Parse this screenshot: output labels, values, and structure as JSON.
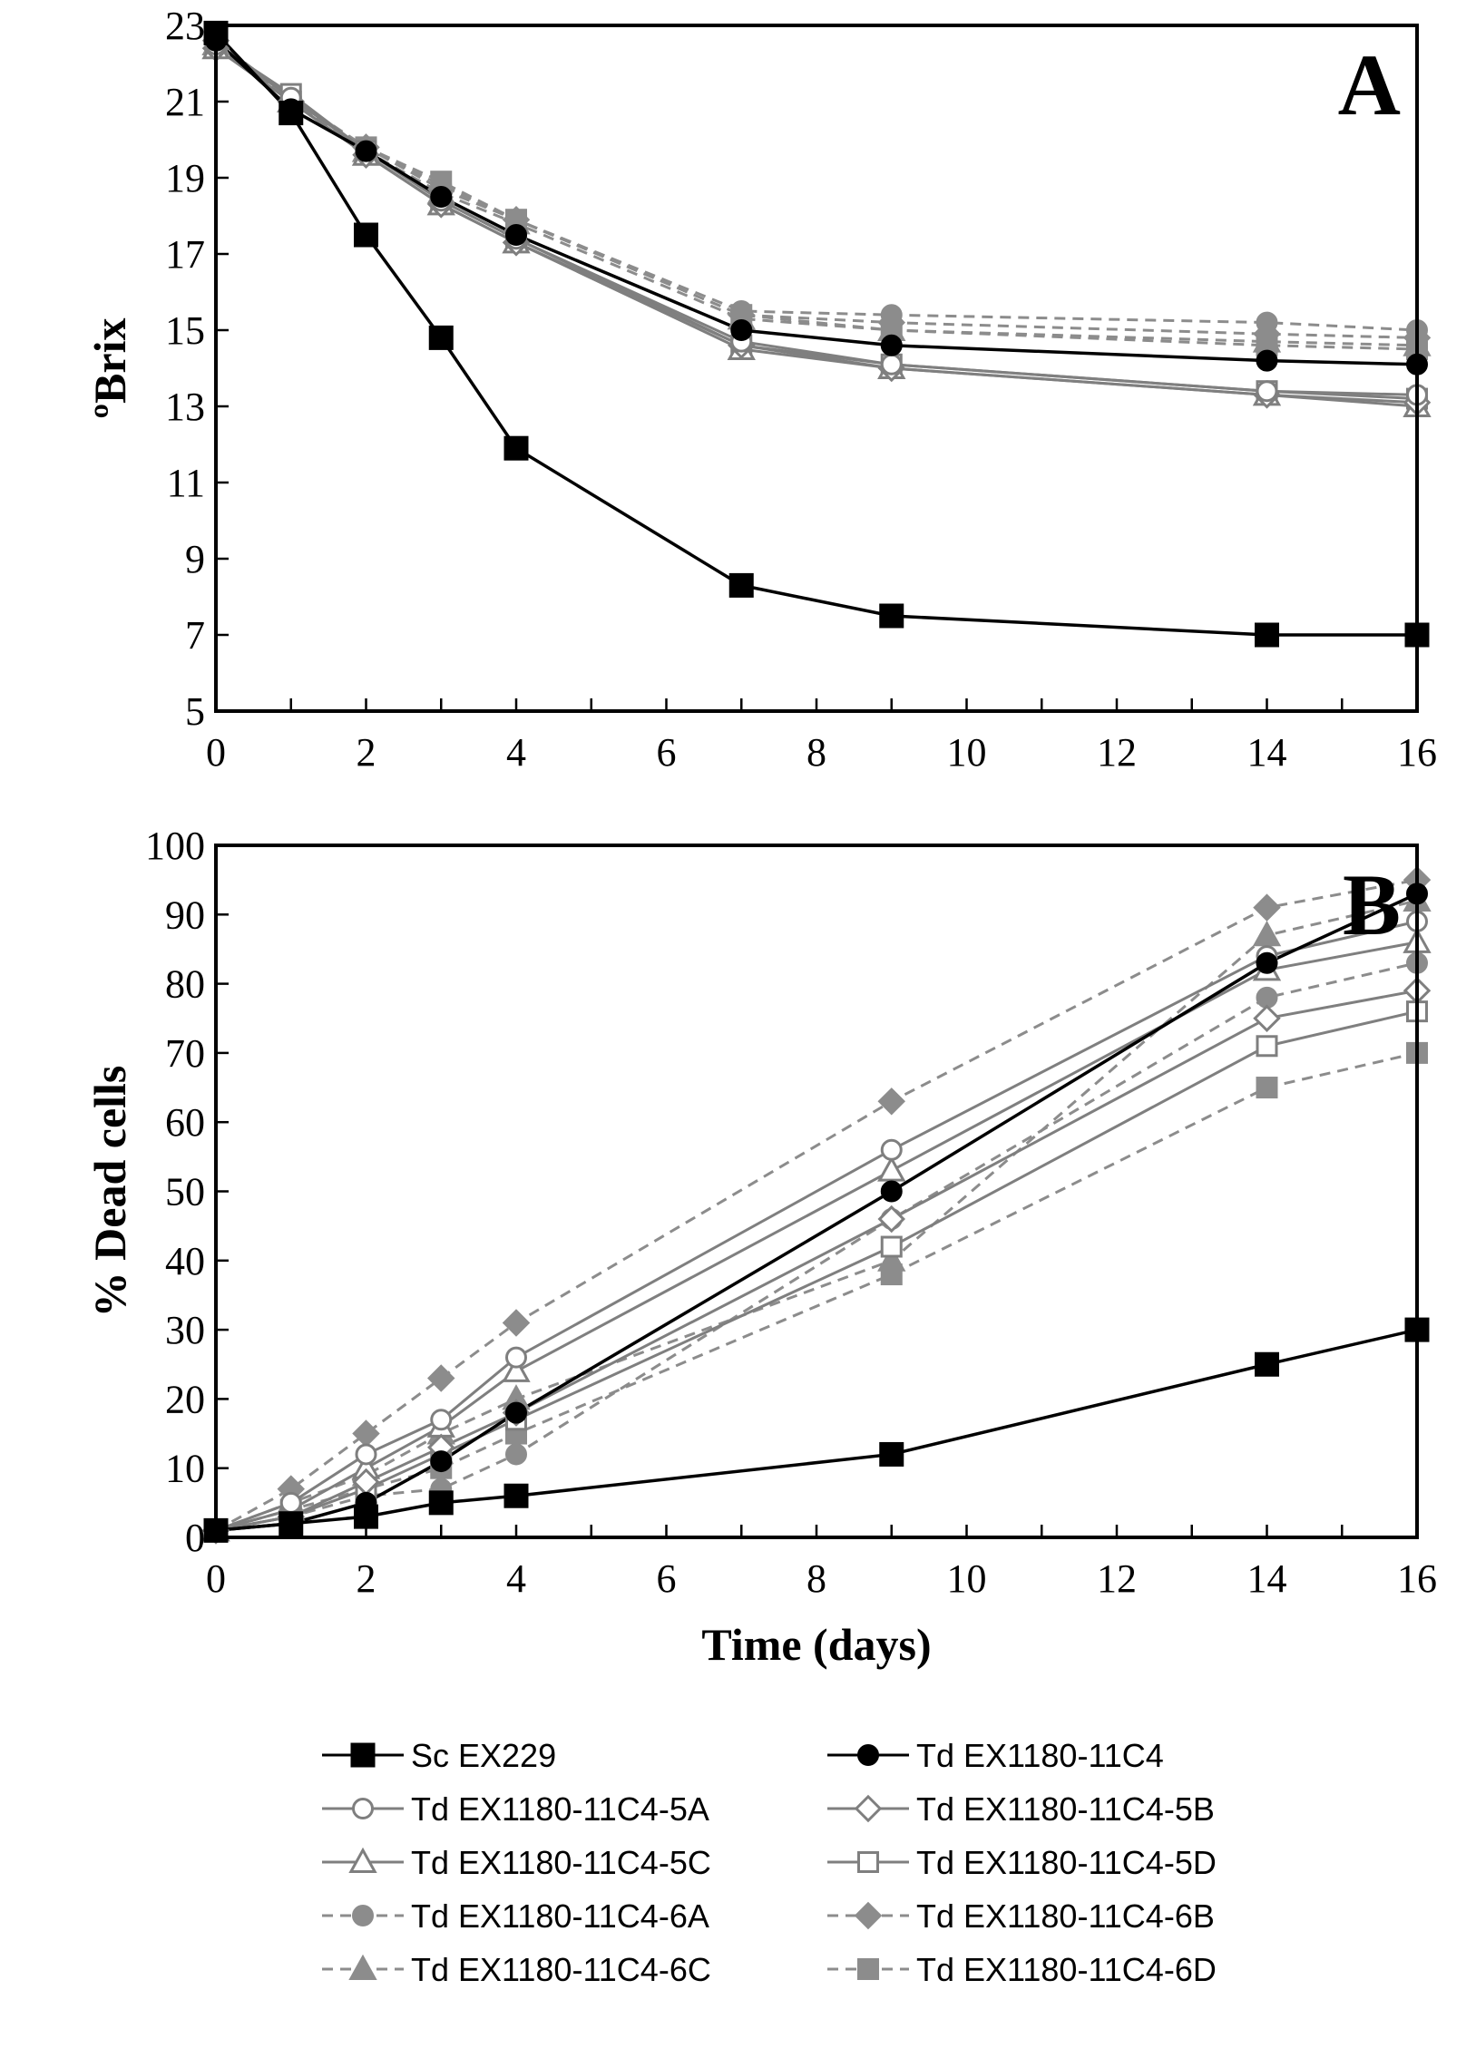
{
  "colors": {
    "black": "#000000",
    "gray": "#7f7f7f",
    "gray_dashed": "#8c8c8c"
  },
  "legend_columns": 2,
  "chart_data": [
    {
      "type": "line",
      "panel_label": "A",
      "xlabel": "",
      "ylabel": "ºBrix",
      "xlim": [
        0,
        16
      ],
      "ylim": [
        5,
        23
      ],
      "xticks": [
        0,
        2,
        4,
        6,
        8,
        10,
        12,
        14,
        16
      ],
      "yticks": [
        5,
        7,
        9,
        11,
        13,
        15,
        17,
        19,
        21,
        23
      ],
      "grid": false,
      "series": [
        {
          "name": "Sc EX229",
          "line": "solid",
          "color": "black",
          "marker": "square-filled",
          "x": [
            0,
            1,
            2,
            3,
            4,
            7,
            9,
            14,
            16
          ],
          "y": [
            22.8,
            20.7,
            17.5,
            14.8,
            11.9,
            8.3,
            7.5,
            7.0,
            7.0
          ]
        },
        {
          "name": "Td EX1180-11C4",
          "line": "solid",
          "color": "black",
          "marker": "circle-filled",
          "x": [
            0,
            1,
            2,
            3,
            4,
            7,
            9,
            14,
            16
          ],
          "y": [
            22.6,
            20.8,
            19.7,
            18.5,
            17.5,
            15.0,
            14.6,
            14.2,
            14.1
          ]
        },
        {
          "name": "Td EX1180-11C4-5A",
          "line": "solid",
          "color": "gray",
          "marker": "circle-open",
          "x": [
            0,
            1,
            2,
            3,
            4,
            7,
            9,
            14,
            16
          ],
          "y": [
            22.5,
            21.1,
            19.7,
            18.4,
            17.4,
            14.7,
            14.1,
            13.4,
            13.3
          ]
        },
        {
          "name": "Td EX1180-11C4-5B",
          "line": "solid",
          "color": "gray",
          "marker": "diamond-open",
          "x": [
            0,
            1,
            2,
            3,
            4,
            7,
            9,
            14,
            16
          ],
          "y": [
            22.4,
            21.0,
            19.6,
            18.3,
            17.3,
            14.6,
            14.0,
            13.3,
            13.1
          ]
        },
        {
          "name": "Td EX1180-11C4-5C",
          "line": "solid",
          "color": "gray",
          "marker": "triangle-open",
          "x": [
            0,
            1,
            2,
            3,
            4,
            7,
            9,
            14,
            16
          ],
          "y": [
            22.4,
            21.0,
            19.6,
            18.3,
            17.3,
            14.5,
            14.0,
            13.3,
            13.0
          ]
        },
        {
          "name": "Td EX1180-11C4-5D",
          "line": "solid",
          "color": "gray",
          "marker": "square-open",
          "x": [
            0,
            1,
            2,
            3,
            4,
            7,
            9,
            14,
            16
          ],
          "y": [
            22.5,
            21.2,
            19.7,
            18.4,
            17.4,
            14.6,
            14.1,
            13.4,
            13.2
          ]
        },
        {
          "name": "Td EX1180-11C4-6A",
          "line": "dashed",
          "color": "gray",
          "marker": "circle-filled",
          "x": [
            0,
            1,
            2,
            3,
            4,
            7,
            9,
            14,
            16
          ],
          "y": [
            22.6,
            21.1,
            19.8,
            18.8,
            17.9,
            15.5,
            15.4,
            15.2,
            15.0
          ]
        },
        {
          "name": "Td EX1180-11C4-6B",
          "line": "dashed",
          "color": "gray",
          "marker": "diamond-filled",
          "x": [
            0,
            1,
            2,
            3,
            4,
            7,
            9,
            14,
            16
          ],
          "y": [
            22.6,
            21.0,
            19.8,
            18.7,
            17.9,
            15.4,
            15.2,
            14.9,
            14.8
          ]
        },
        {
          "name": "Td EX1180-11C4-6C",
          "line": "dashed",
          "color": "gray",
          "marker": "triangle-filled",
          "x": [
            0,
            1,
            2,
            3,
            4,
            7,
            9,
            14,
            16
          ],
          "y": [
            22.5,
            21.0,
            19.7,
            18.6,
            17.8,
            15.3,
            15.0,
            14.7,
            14.6
          ]
        },
        {
          "name": "Td EX1180-11C4-6D",
          "line": "dashed",
          "color": "gray",
          "marker": "square-filled",
          "x": [
            0,
            1,
            2,
            3,
            4,
            7,
            9,
            14,
            16
          ],
          "y": [
            22.6,
            21.0,
            19.8,
            18.9,
            17.9,
            15.4,
            15.0,
            14.6,
            14.5
          ]
        }
      ]
    },
    {
      "type": "line",
      "panel_label": "B",
      "xlabel": "Time (days)",
      "ylabel": "% Dead cells",
      "xlim": [
        0,
        16
      ],
      "ylim": [
        0,
        100
      ],
      "xticks": [
        0,
        2,
        4,
        6,
        8,
        10,
        12,
        14,
        16
      ],
      "yticks": [
        0,
        10,
        20,
        30,
        40,
        50,
        60,
        70,
        80,
        90,
        100
      ],
      "grid": false,
      "series": [
        {
          "name": "Sc EX229",
          "line": "solid",
          "color": "black",
          "marker": "square-filled",
          "x": [
            0,
            1,
            2,
            3,
            4,
            9,
            14,
            16
          ],
          "y": [
            1,
            2,
            3,
            5,
            6,
            12,
            25,
            30
          ]
        },
        {
          "name": "Td EX1180-11C4",
          "line": "solid",
          "color": "black",
          "marker": "circle-filled",
          "x": [
            0,
            1,
            2,
            3,
            4,
            9,
            14,
            16
          ],
          "y": [
            1,
            2,
            5,
            11,
            18,
            50,
            83,
            93
          ]
        },
        {
          "name": "Td EX1180-11C4-5A",
          "line": "solid",
          "color": "gray",
          "marker": "circle-open",
          "x": [
            0,
            1,
            2,
            3,
            4,
            9,
            14,
            16
          ],
          "y": [
            1,
            5,
            12,
            17,
            26,
            56,
            84,
            89
          ]
        },
        {
          "name": "Td EX1180-11C4-5B",
          "line": "solid",
          "color": "gray",
          "marker": "diamond-open",
          "x": [
            0,
            1,
            2,
            3,
            4,
            9,
            14,
            16
          ],
          "y": [
            1,
            3,
            8,
            13,
            18,
            46,
            75,
            79
          ]
        },
        {
          "name": "Td EX1180-11C4-5C",
          "line": "solid",
          "color": "gray",
          "marker": "triangle-open",
          "x": [
            0,
            1,
            2,
            3,
            4,
            9,
            14,
            16
          ],
          "y": [
            1,
            4,
            10,
            16,
            24,
            53,
            82,
            86
          ]
        },
        {
          "name": "Td EX1180-11C4-5D",
          "line": "solid",
          "color": "gray",
          "marker": "square-open",
          "x": [
            0,
            1,
            2,
            3,
            4,
            9,
            14,
            16
          ],
          "y": [
            1,
            3,
            7,
            12,
            17,
            42,
            71,
            76
          ]
        },
        {
          "name": "Td EX1180-11C4-6A",
          "line": "dashed",
          "color": "gray",
          "marker": "circle-filled",
          "x": [
            0,
            1,
            2,
            3,
            4,
            9,
            14,
            16
          ],
          "y": [
            1,
            3,
            6,
            7,
            12,
            46,
            78,
            83
          ]
        },
        {
          "name": "Td EX1180-11C4-6B",
          "line": "dashed",
          "color": "gray",
          "marker": "diamond-filled",
          "x": [
            0,
            1,
            2,
            3,
            4,
            9,
            14,
            16
          ],
          "y": [
            1,
            7,
            15,
            23,
            31,
            63,
            91,
            95
          ]
        },
        {
          "name": "Td EX1180-11C4-6C",
          "line": "dashed",
          "color": "gray",
          "marker": "triangle-filled",
          "x": [
            0,
            1,
            2,
            3,
            4,
            9,
            14,
            16
          ],
          "y": [
            1,
            5,
            9,
            15,
            20,
            40,
            87,
            92
          ]
        },
        {
          "name": "Td EX1180-11C4-6D",
          "line": "dashed",
          "color": "gray",
          "marker": "square-filled",
          "x": [
            0,
            1,
            2,
            3,
            4,
            9,
            14,
            16
          ],
          "y": [
            1,
            4,
            7,
            10,
            15,
            38,
            65,
            70
          ]
        }
      ]
    }
  ]
}
